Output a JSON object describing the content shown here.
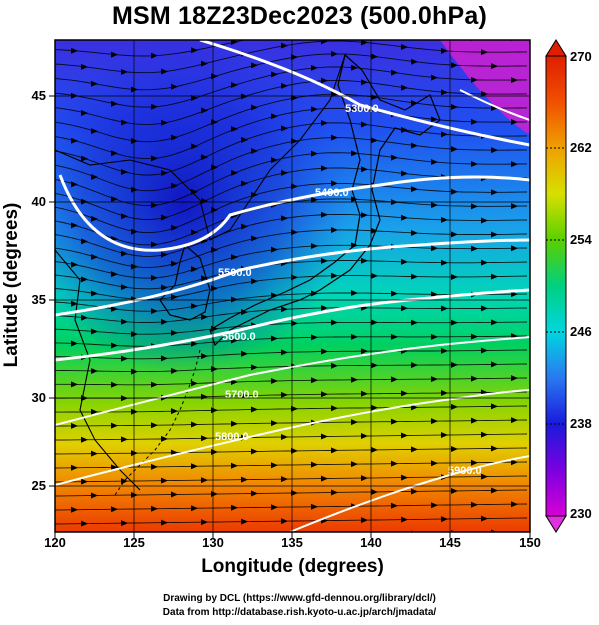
{
  "title": "MSM 18Z23Dec2023 (500.0hPa)",
  "chart_data": {
    "type": "map",
    "projection": "equirectangular",
    "xlabel": "Longitude (degrees)",
    "ylabel": "Latitude  (degrees)",
    "xlim": [
      120,
      150
    ],
    "ylim": [
      22.5,
      47.5
    ],
    "xticks": [
      "120",
      "125",
      "130",
      "135",
      "140",
      "145",
      "150"
    ],
    "yticks": [
      "25",
      "30",
      "35",
      "40",
      "45"
    ],
    "grid": true,
    "fields": {
      "shaded": "temperature (K)",
      "contours": "geopotential height (m)",
      "streamlines": "wind"
    },
    "colorbar": {
      "range": [
        230,
        270
      ],
      "ticks": [
        "270",
        "262",
        "254",
        "246",
        "238",
        "230"
      ],
      "colors": [
        "#d600d6",
        "#7b00e0",
        "#1a1adc",
        "#2a78f0",
        "#00d6e0",
        "#00d080",
        "#5ad000",
        "#d6e000",
        "#f0a000",
        "#f05000",
        "#e01e00"
      ]
    },
    "contour_labels": [
      "5300.0",
      "5400.0",
      "5500.0",
      "5600.0",
      "5700.0",
      "5800.0",
      "5900.0"
    ]
  },
  "credits": {
    "line1": "Drawing by DCL (https://www.gfd-dennou.org/library/dcl/)",
    "line2": "Data from http://database.rish.kyoto-u.ac.jp/arch/jmadata/"
  }
}
